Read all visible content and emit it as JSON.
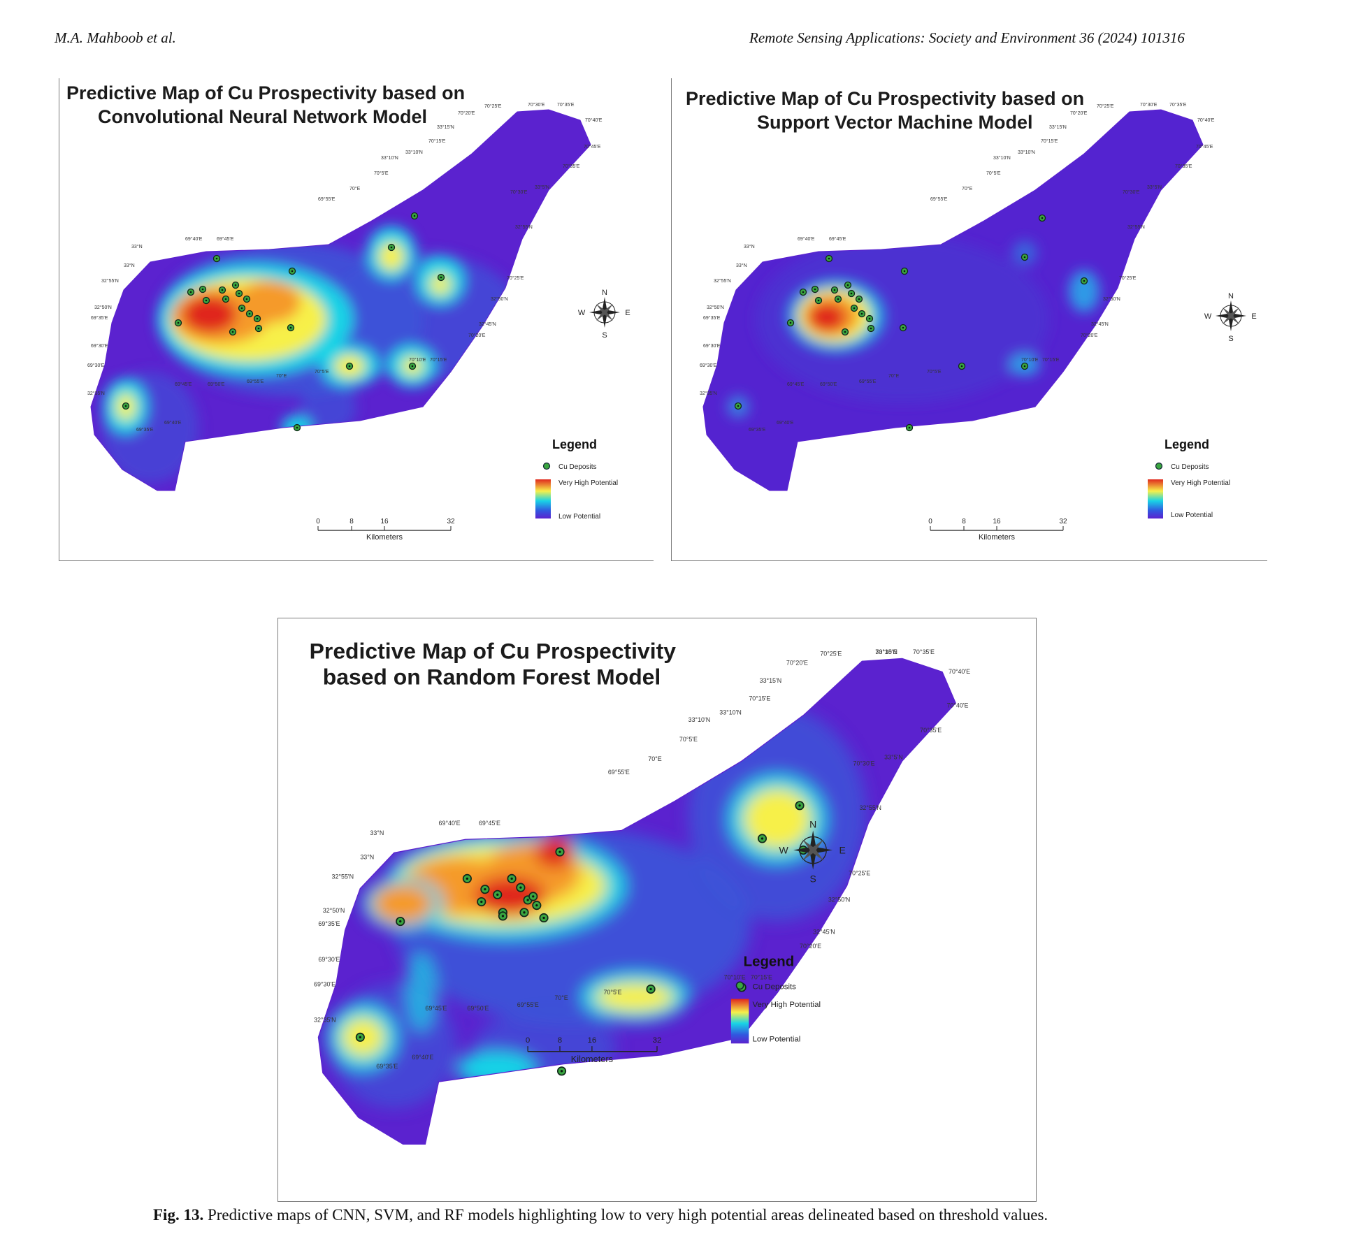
{
  "header": {
    "authors": "M.A. Mahboob et al.",
    "journal": "Remote Sensing Applications: Society and Environment 36 (2024) 101316"
  },
  "legend": {
    "title": "Legend",
    "deposits": "Cu Deposits",
    "high": "Very High Potential",
    "low": "Low Potential"
  },
  "scale": {
    "ticks": [
      "0",
      "8",
      "16",
      "32"
    ],
    "unit": "Kilometers"
  },
  "compass": {
    "n": "N",
    "s": "S",
    "e": "E",
    "w": "W"
  },
  "palette": {
    "low": "#5b22cf",
    "mid_blue": "#2f6fe0",
    "cyan": "#19d3e6",
    "yellow": "#f7f04a",
    "orange": "#f59a2c",
    "red": "#e0281e",
    "deposit_dot": "#3aa640"
  },
  "maps": [
    {
      "id": "cnn",
      "title_line1": "Predictive Map of Cu Prospectivity based on",
      "title_line2": "Convolutional Neural Network Model",
      "coords": [
        "70°30'E",
        "70°35'E",
        "70°25'E",
        "70°40'E",
        "70°20'E",
        "33°15'N",
        "70°15'E",
        "70°45'E",
        "33°10'N",
        "70°35'E",
        "33°10'N",
        "70°5'E",
        "33°5'N",
        "70°E",
        "70°30'E",
        "69°55'E",
        "69°40'E",
        "69°45'E",
        "33°N",
        "33°N",
        "32°55'N",
        "32°55'N",
        "70°25'E",
        "32°50'N",
        "32°50'N",
        "69°35'E",
        "32°45'N",
        "70°20'E",
        "69°30'E",
        "69°30'E",
        "70°10'E",
        "70°15'E",
        "32°35'N",
        "69°45'E",
        "69°50'E",
        "69°55'E",
        "70°E",
        "70°5'E",
        "69°40'E",
        "69°35'E"
      ]
    },
    {
      "id": "svm",
      "title_line1": "Predictive Map of Cu Prospectivity based on",
      "title_line2": "Support Vector Machine Model",
      "coords": [
        "70°30'E",
        "70°35'E",
        "70°25'E",
        "70°40'E",
        "70°20'E",
        "33°15'N",
        "70°15'E",
        "70°45'E",
        "33°10'N",
        "70°35'E",
        "33°10'N",
        "70°5'E",
        "33°5'N",
        "70°E",
        "70°30'E",
        "69°55'E",
        "69°40'E",
        "69°45'E",
        "33°N",
        "33°N",
        "32°55'N",
        "32°55'N",
        "70°25'E",
        "32°50'N",
        "32°50'N",
        "69°35'E",
        "32°45'N",
        "70°20'E",
        "69°30'E",
        "69°30'E",
        "70°10'E",
        "70°15'E",
        "32°35'N",
        "69°45'E",
        "69°50'E",
        "69°55'E",
        "70°E",
        "70°5'E",
        "69°40'E",
        "69°35'E"
      ]
    },
    {
      "id": "rf",
      "title_line1": "Predictive Map of Cu Prospectivity",
      "title_line2": "based on Random Forest Model",
      "coords": [
        "70°30'E",
        "70°35'E",
        "70°25'E",
        "70°40'E",
        "70°20'E",
        "33°15'N",
        "70°15'E",
        "70°40'E",
        "33°10'N",
        "70°35'E",
        "33°10'N",
        "70°5'E",
        "33°5'N",
        "70°E",
        "70°30'E",
        "69°55'E",
        "69°40'E",
        "69°45'E",
        "33°N",
        "33°N",
        "32°55'N",
        "32°55'N",
        "70°25'E",
        "32°50'N",
        "32°50'N",
        "69°35'E",
        "32°45'N",
        "70°20'E",
        "69°30'E",
        "69°30'E",
        "70°10'E",
        "70°15'E",
        "32°35'N",
        "69°45'E",
        "69°50'E",
        "69°55'E",
        "70°E",
        "70°5'E",
        "69°40'E",
        "69°35'E",
        "33°15'N"
      ]
    }
  ],
  "caption": {
    "label": "Fig. 13.",
    "text": " Predictive maps of CNN, SVM, and RF models highlighting low to very high potential areas delineated based on threshold values."
  }
}
